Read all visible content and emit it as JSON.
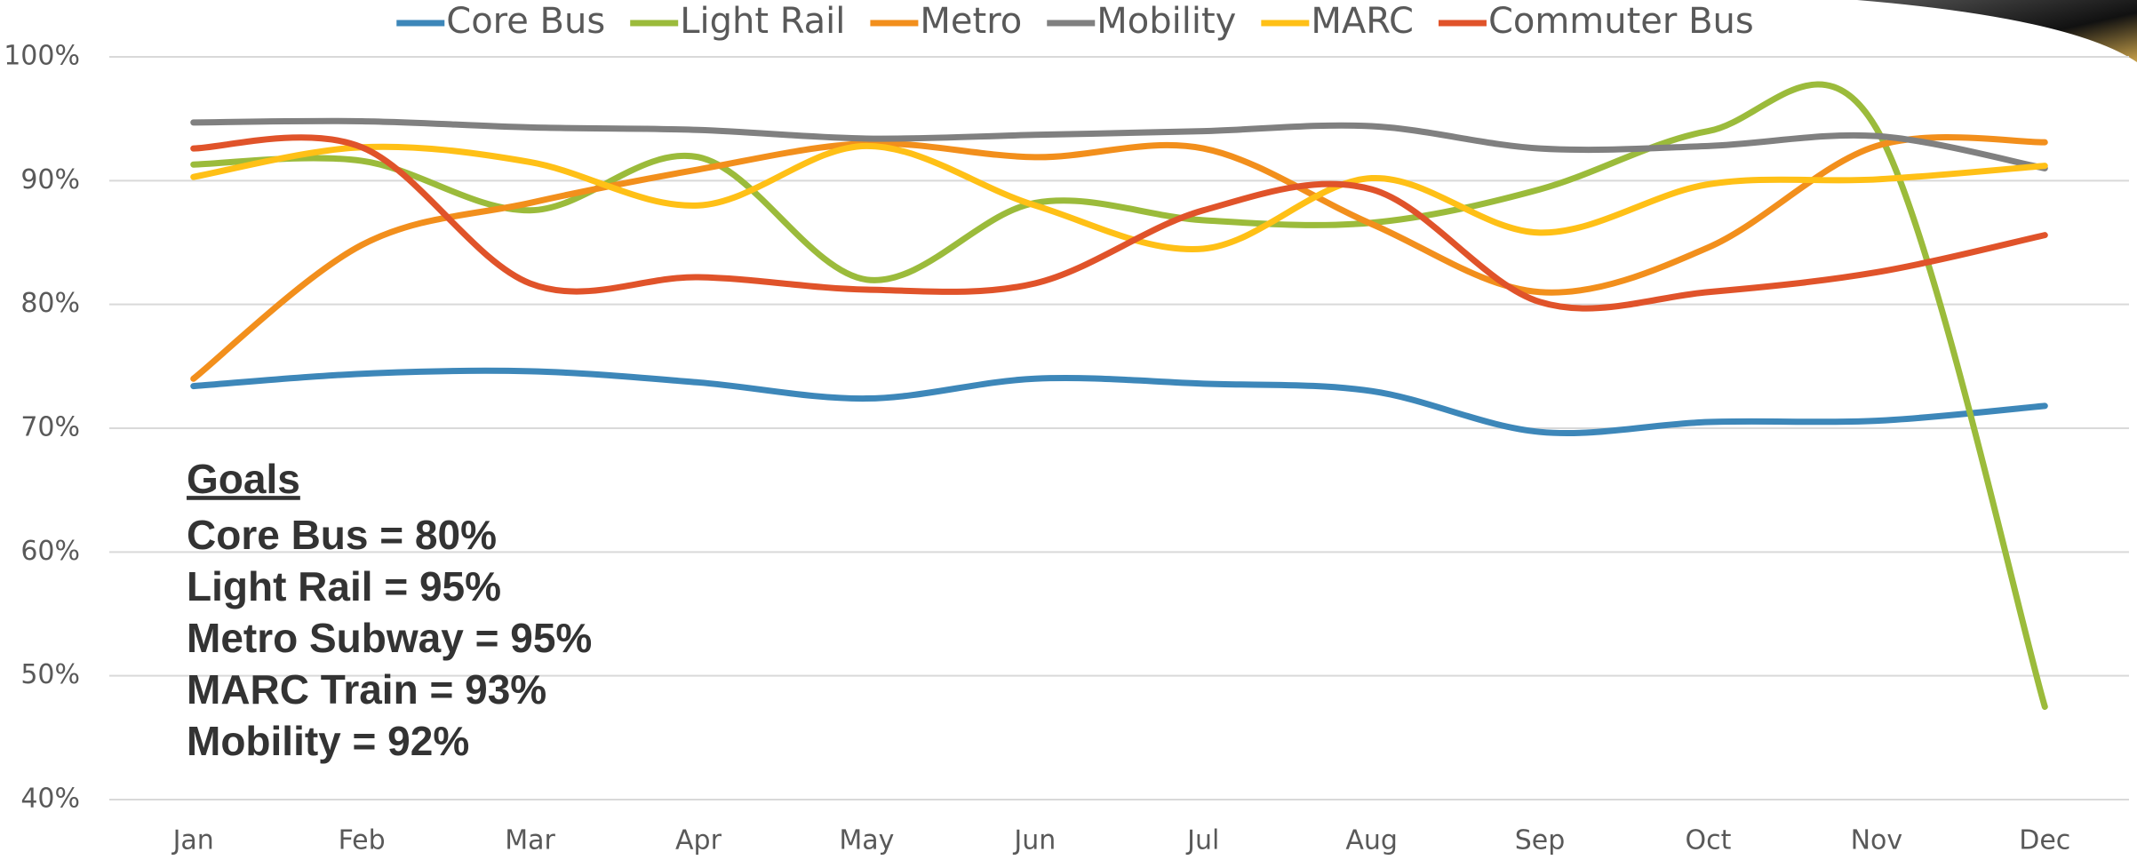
{
  "chart_data": {
    "type": "line",
    "categories": [
      "Jan",
      "Feb",
      "Mar",
      "Apr",
      "May",
      "Jun",
      "Jul",
      "Aug",
      "Sep",
      "Oct",
      "Nov",
      "Dec"
    ],
    "series": [
      {
        "name": "Core Bus",
        "color": "#3d87b9",
        "values": [
          73.4,
          74.4,
          74.6,
          73.7,
          72.4,
          74.0,
          73.6,
          73.0,
          69.7,
          70.5,
          70.6,
          71.8
        ]
      },
      {
        "name": "Light Rail",
        "color": "#9bbb3b",
        "values": [
          91.3,
          91.6,
          87.6,
          91.9,
          82.0,
          88.2,
          86.8,
          86.6,
          89.3,
          94.0,
          94.2,
          47.5
        ]
      },
      {
        "name": "Metro",
        "color": "#f28f1c",
        "values": [
          74.0,
          84.8,
          88.2,
          90.9,
          93.0,
          91.9,
          92.6,
          86.5,
          81.0,
          84.6,
          92.8,
          93.1
        ]
      },
      {
        "name": "Mobility",
        "color": "#808080",
        "values": [
          94.7,
          94.8,
          94.3,
          94.1,
          93.4,
          93.7,
          94.0,
          94.4,
          92.6,
          92.8,
          93.6,
          91.0
        ]
      },
      {
        "name": "MARC",
        "color": "#ffc016",
        "values": [
          90.3,
          92.7,
          91.5,
          88.0,
          92.8,
          88.0,
          84.5,
          90.2,
          85.8,
          89.7,
          90.1,
          91.2
        ]
      },
      {
        "name": "Commuter Bus",
        "color": "#e0532a",
        "values": [
          92.6,
          92.7,
          81.7,
          82.2,
          81.2,
          81.7,
          87.6,
          89.3,
          80.2,
          81.0,
          82.6,
          85.6
        ]
      }
    ],
    "ylim": [
      40,
      100
    ],
    "yticks": [
      {
        "value": 40,
        "label": "40%"
      },
      {
        "value": 50,
        "label": "50%"
      },
      {
        "value": 60,
        "label": "60%"
      },
      {
        "value": 70,
        "label": "70%"
      },
      {
        "value": 80,
        "label": "80%"
      },
      {
        "value": 90,
        "label": "90%"
      },
      {
        "value": 100,
        "label": "100%"
      }
    ],
    "grid": true,
    "legend": "top",
    "annotations": {
      "title": "Goals",
      "lines": [
        "Core Bus = 80%",
        "Light Rail = 95%",
        "Metro Subway = 95%",
        "MARC Train = 93%",
        "Mobility = 92%"
      ]
    }
  }
}
